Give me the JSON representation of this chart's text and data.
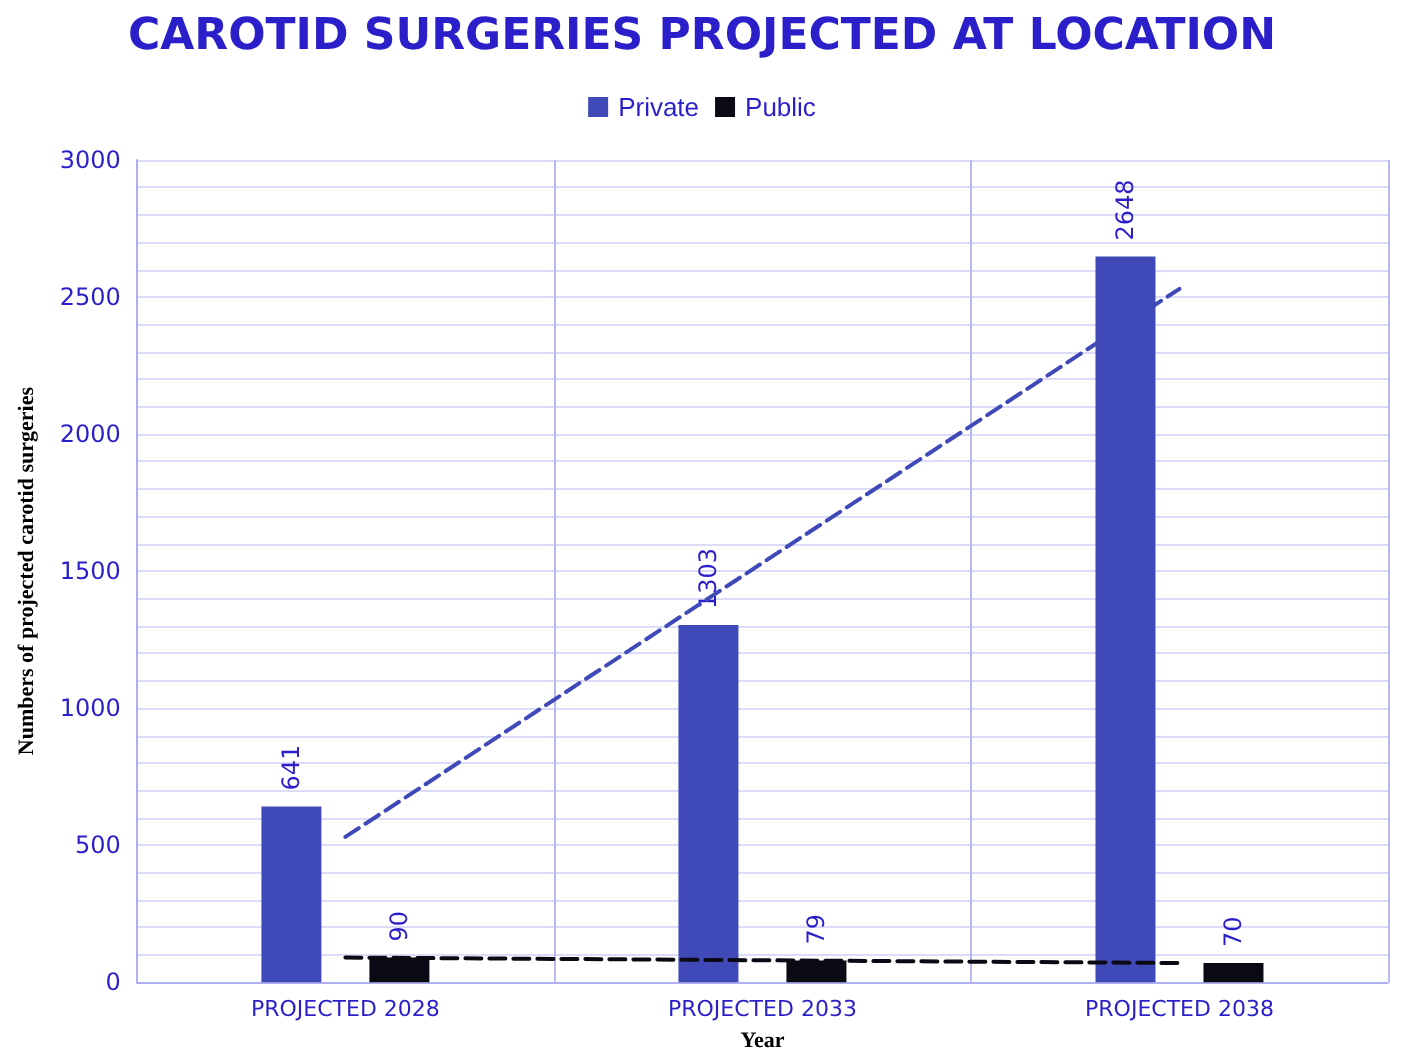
{
  "chart_data": {
    "type": "bar",
    "title": "CAROTID SURGERIES PROJECTED AT LOCATION",
    "xlabel": "Year",
    "ylabel": "Numbers of projected carotid surgeries",
    "categories": [
      "PROJECTED 2028",
      "PROJECTED 2033",
      "PROJECTED 2038"
    ],
    "series": [
      {
        "name": "Private",
        "color": "#4049b8",
        "values": [
          641,
          1303,
          2648
        ],
        "value_labels": [
          "641",
          "1303",
          "2648"
        ]
      },
      {
        "name": "Public",
        "color": "#0a0a14",
        "values": [
          90,
          79,
          70
        ],
        "value_labels": [
          "90",
          "79",
          "70"
        ]
      },
      {
        "type": "line",
        "color": "#4049b8",
        "x": [
          "PROJECTED 2028",
          "PROJECTED 2033",
          "PROJECTED 2038"
        ],
        "values": [
          530,
          1530,
          2530
        ],
        "line_style": "dashed",
        "marker": "none"
      },
      {
        "type": "line",
        "color": "#0a0a14",
        "x": [
          "PROJECTED 2028",
          "PROJECTED 2033",
          "PROJECTED 2038"
        ],
        "values": [
          90,
          80,
          70
        ],
        "line_style": "dashed",
        "marker": "none"
      }
    ],
    "ylim": [
      0,
      3000
    ],
    "yticks": [
      0,
      {
        "value": 100,
        "label": null
      },
      {
        "value": 200,
        "label": null
      },
      {
        "value": 300,
        "label": null
      },
      {
        "value": 400,
        "label": null
      },
      500,
      {
        "value": 600,
        "label": null
      },
      {
        "value": 700,
        "label": null
      },
      {
        "value": 800,
        "label": null
      },
      {
        "value": 900,
        "label": null
      },
      1000,
      {
        "value": 1100,
        "label": null
      },
      {
        "value": 1200,
        "label": null
      },
      {
        "value": 1300,
        "label": null
      },
      {
        "value": 1400,
        "label": null
      },
      1500,
      {
        "value": 1600,
        "label": null
      },
      {
        "value": 1700,
        "label": null
      },
      {
        "value": 1800,
        "label": null
      },
      {
        "value": 1900,
        "label": null
      },
      2000,
      {
        "value": 2100,
        "label": null
      },
      {
        "value": 2200,
        "label": null
      },
      {
        "value": 2300,
        "label": null
      },
      {
        "value": 2400,
        "label": null
      },
      2500,
      {
        "value": 2600,
        "label": null
      },
      {
        "value": 2700,
        "label": null
      },
      {
        "value": 2800,
        "label": null
      },
      {
        "value": 2900,
        "label": null
      },
      3000
    ],
    "grid": true,
    "legend": "top"
  }
}
